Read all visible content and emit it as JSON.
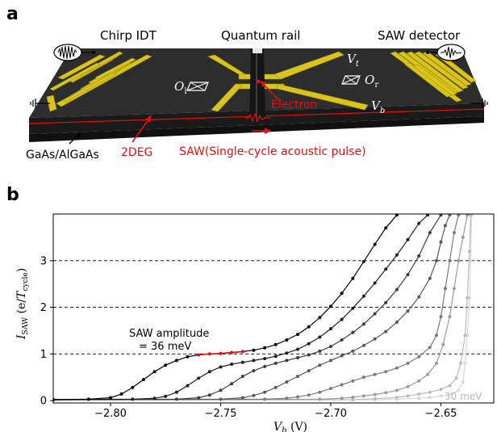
{
  "panel_a": {
    "label": "a",
    "titles": {
      "chirp_idt": "Chirp IDT",
      "quantum_rail": "Quantum rail",
      "saw_detector": "SAW detector"
    },
    "substrate": "GaAs/AlGaAs",
    "twodeg": "2DEG",
    "saw_pulse": "SAW(Single-cycle acoustic pulse)",
    "electron": "Electron",
    "gate_top": "V",
    "gate_top_sub": "t",
    "gate_bottom": "V",
    "gate_bottom_sub": "b",
    "ohmic_left": "O",
    "ohmic_left_sub": "l",
    "ohmic_right": "O",
    "ohmic_right_sub": "r",
    "colors": {
      "gold": "#d4c21a",
      "chip": "#2b2b2b",
      "red": "#e01010"
    }
  },
  "panel_b": {
    "label": "b",
    "annotation_line1": "SAW amplitude",
    "annotation_line2": "= 36 meV",
    "corner_label": "30 meV"
  },
  "chart_data": {
    "type": "line",
    "xlabel": "V_b (V)",
    "xlabel_main": "V",
    "xlabel_sub": "b",
    "xlabel_unit": " (V)",
    "ylabel": "I_SAW (e/T_cycle)",
    "xlim": [
      -2.826,
      -2.626
    ],
    "ylim": [
      -0.05,
      4.0
    ],
    "x_ticks": [
      -2.8,
      -2.75,
      -2.7,
      -2.65
    ],
    "x_tick_labels": [
      "−2.80",
      "−2.75",
      "−2.70",
      "−2.65"
    ],
    "y_ticks": [
      0,
      1,
      2,
      3
    ],
    "y_tick_labels": [
      "0",
      "1",
      "2",
      "3"
    ],
    "dashed_levels": [
      1,
      2,
      3
    ],
    "highlight": {
      "series_index": 0,
      "x_range": [
        -2.762,
        -2.737
      ],
      "color": "#e01010"
    },
    "series": [
      {
        "color": "#000000",
        "x": [
          -2.826,
          -2.81,
          -2.8,
          -2.795,
          -2.79,
          -2.785,
          -2.78,
          -2.775,
          -2.77,
          -2.765,
          -2.76,
          -2.755,
          -2.75,
          -2.745,
          -2.74,
          -2.735,
          -2.73,
          -2.725,
          -2.72,
          -2.715,
          -2.71,
          -2.705,
          -2.7,
          -2.695,
          -2.69,
          -2.685,
          -2.68,
          -2.675,
          -2.67
        ],
        "y": [
          0.02,
          0.03,
          0.06,
          0.14,
          0.28,
          0.45,
          0.62,
          0.76,
          0.86,
          0.94,
          0.98,
          1.0,
          1.01,
          1.03,
          1.05,
          1.08,
          1.13,
          1.2,
          1.3,
          1.42,
          1.58,
          1.78,
          2.02,
          2.3,
          2.62,
          2.98,
          3.35,
          3.7,
          3.98
        ]
      },
      {
        "color": "#1e1e1e",
        "x": [
          -2.826,
          -2.79,
          -2.78,
          -2.775,
          -2.77,
          -2.765,
          -2.76,
          -2.755,
          -2.75,
          -2.745,
          -2.74,
          -2.735,
          -2.73,
          -2.725,
          -2.72,
          -2.715,
          -2.71,
          -2.705,
          -2.7,
          -2.695,
          -2.69,
          -2.685,
          -2.68,
          -2.675,
          -2.67,
          -2.665,
          -2.66,
          -2.656
        ],
        "y": [
          0.02,
          0.03,
          0.05,
          0.09,
          0.18,
          0.32,
          0.48,
          0.62,
          0.72,
          0.78,
          0.82,
          0.86,
          0.9,
          0.95,
          1.02,
          1.1,
          1.22,
          1.36,
          1.54,
          1.74,
          1.98,
          2.24,
          2.52,
          2.82,
          3.12,
          3.45,
          3.8,
          3.98
        ]
      },
      {
        "color": "#3c3c3c",
        "x": [
          -2.826,
          -2.77,
          -2.76,
          -2.755,
          -2.75,
          -2.745,
          -2.74,
          -2.735,
          -2.73,
          -2.725,
          -2.72,
          -2.715,
          -2.71,
          -2.705,
          -2.7,
          -2.695,
          -2.69,
          -2.685,
          -2.68,
          -2.675,
          -2.67,
          -2.665,
          -2.66,
          -2.655,
          -2.65
        ],
        "y": [
          0.02,
          0.03,
          0.06,
          0.12,
          0.22,
          0.36,
          0.52,
          0.64,
          0.73,
          0.8,
          0.86,
          0.92,
          0.98,
          1.06,
          1.16,
          1.3,
          1.46,
          1.64,
          1.86,
          2.1,
          2.38,
          2.7,
          3.1,
          3.6,
          3.98
        ]
      },
      {
        "color": "#5a5a5a",
        "x": [
          -2.826,
          -2.75,
          -2.74,
          -2.735,
          -2.73,
          -2.725,
          -2.72,
          -2.715,
          -2.71,
          -2.705,
          -2.7,
          -2.695,
          -2.69,
          -2.685,
          -2.68,
          -2.675,
          -2.67,
          -2.665,
          -2.66,
          -2.655,
          -2.652,
          -2.65,
          -2.648,
          -2.646
        ],
        "y": [
          0.02,
          0.03,
          0.06,
          0.11,
          0.18,
          0.28,
          0.4,
          0.52,
          0.64,
          0.76,
          0.86,
          0.96,
          1.06,
          1.18,
          1.32,
          1.48,
          1.68,
          1.92,
          2.22,
          2.62,
          3.0,
          3.4,
          3.75,
          3.98
        ]
      },
      {
        "color": "#7a7a7a",
        "x": [
          -2.826,
          -2.73,
          -2.72,
          -2.715,
          -2.71,
          -2.705,
          -2.7,
          -2.695,
          -2.69,
          -2.685,
          -2.68,
          -2.675,
          -2.67,
          -2.665,
          -2.66,
          -2.655,
          -2.652,
          -2.65,
          -2.648,
          -2.646,
          -2.644,
          -2.642
        ],
        "y": [
          0.02,
          0.03,
          0.05,
          0.08,
          0.12,
          0.18,
          0.26,
          0.34,
          0.42,
          0.5,
          0.56,
          0.62,
          0.7,
          0.8,
          0.94,
          1.14,
          1.4,
          1.8,
          2.4,
          3.0,
          3.6,
          3.98
        ]
      },
      {
        "color": "#9a9a9a",
        "x": [
          -2.826,
          -2.705,
          -2.695,
          -2.69,
          -2.685,
          -2.68,
          -2.675,
          -2.67,
          -2.665,
          -2.66,
          -2.656,
          -2.652,
          -2.649,
          -2.646,
          -2.644,
          -2.642,
          -2.64,
          -2.638
        ],
        "y": [
          0.02,
          0.03,
          0.05,
          0.07,
          0.1,
          0.13,
          0.17,
          0.22,
          0.3,
          0.42,
          0.56,
          0.8,
          1.2,
          1.8,
          2.4,
          3.0,
          3.5,
          3.98
        ]
      },
      {
        "color": "#bbbbbb",
        "x": [
          -2.826,
          -2.69,
          -2.68,
          -2.67,
          -2.665,
          -2.66,
          -2.655,
          -2.65,
          -2.646,
          -2.643,
          -2.641,
          -2.639,
          -2.638,
          -2.637,
          -2.6365
        ],
        "y": [
          0.01,
          0.02,
          0.04,
          0.07,
          0.1,
          0.14,
          0.18,
          0.24,
          0.32,
          0.48,
          0.8,
          1.4,
          2.2,
          3.2,
          3.98
        ]
      },
      {
        "color": "#d8d8d8",
        "x": [
          -2.826,
          -2.68,
          -2.67,
          -2.66,
          -2.655,
          -2.65,
          -2.645,
          -2.642,
          -2.64,
          -2.639,
          -2.638,
          -2.637,
          -2.6365,
          -2.636
        ],
        "y": [
          0.01,
          0.02,
          0.03,
          0.05,
          0.07,
          0.1,
          0.14,
          0.22,
          0.4,
          0.8,
          1.4,
          2.2,
          3.0,
          3.98
        ]
      }
    ]
  }
}
